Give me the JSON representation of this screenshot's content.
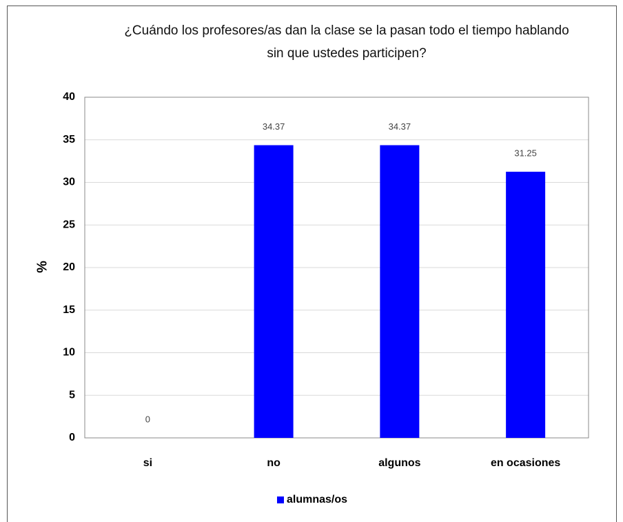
{
  "chart_data": {
    "type": "bar",
    "title": "¿Cuándo los profesores/as dan la clase se la pasan todo el tiempo hablando sin que ustedes participen?",
    "y_label": "%",
    "categories": [
      "si",
      "no",
      "algunos",
      "en ocasiones"
    ],
    "series": [
      {
        "name": "alumnas/os",
        "color": "#0000ff",
        "values": [
          0,
          34.37,
          34.37,
          31.25
        ]
      }
    ],
    "ylim": [
      0,
      40
    ],
    "yticks": [
      0,
      5,
      10,
      15,
      20,
      25,
      30,
      35,
      40
    ],
    "grid": true,
    "legend": "bottom"
  }
}
